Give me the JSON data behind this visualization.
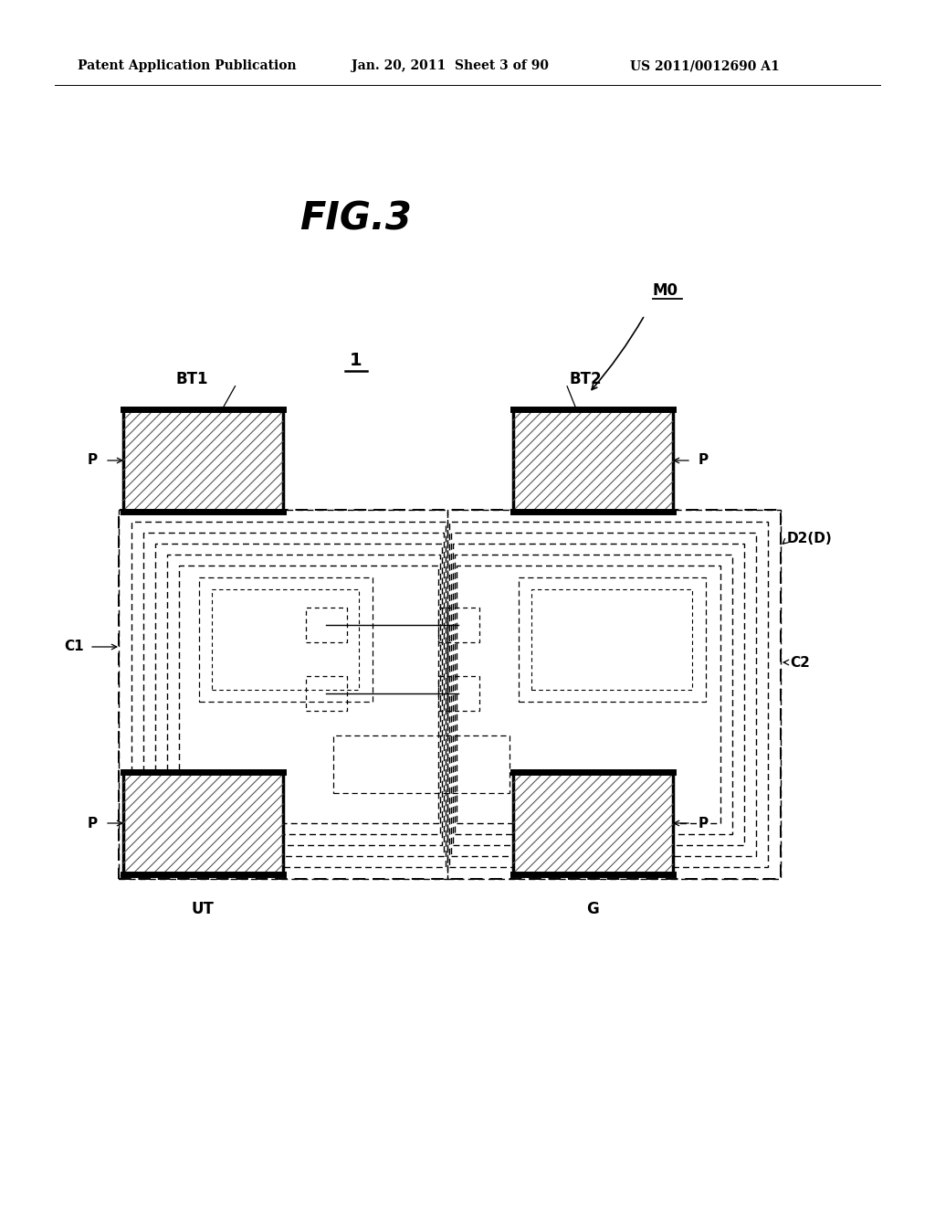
{
  "bg_color": "#ffffff",
  "header_left": "Patent Application Publication",
  "header_mid": "Jan. 20, 2011  Sheet 3 of 90",
  "header_right": "US 2011/0012690 A1",
  "fig_title": "FIG.3",
  "label_1": "1",
  "label_M0": "M0",
  "label_BT1": "BT1",
  "label_BT2": "BT2",
  "label_P": "P",
  "label_C1": "C1",
  "label_C2": "C2",
  "label_D2D": "D2(D)",
  "label_UT": "UT",
  "label_G": "G"
}
